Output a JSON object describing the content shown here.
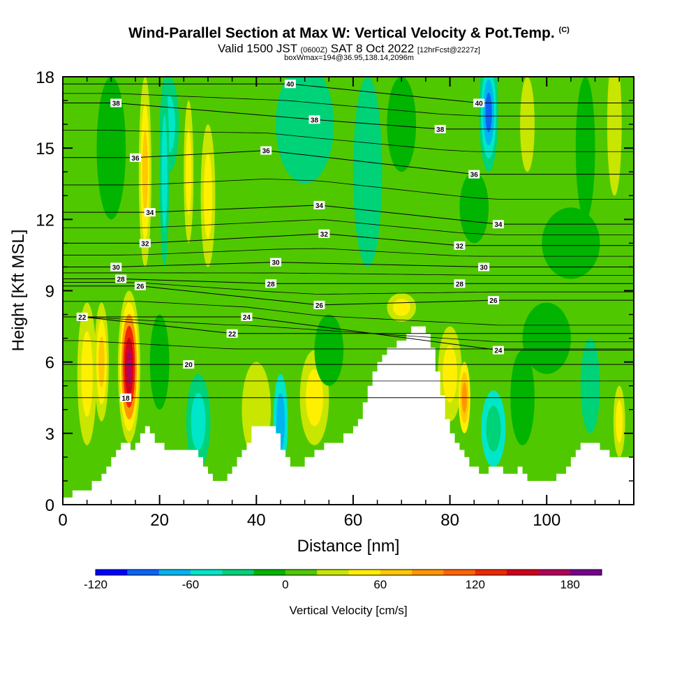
{
  "header": {
    "title_main": "Wind-Parallel Section at Max W: Vertical Velocity & Pot.Temp.",
    "title_mark": "(C)",
    "valid_prefix": "Valid 1500 JST",
    "valid_utc": "(0600Z)",
    "valid_date": "SAT 8 Oct 2022",
    "forecast": "[12hrFcst@2227z]",
    "box_info": "boxWmax=194@36.95,138.14,2096m"
  },
  "chart_data": {
    "type": "heatmap",
    "xlabel": "Distance [nm]",
    "ylabel": "Height [Kft MSL]",
    "xlim": [
      0,
      118
    ],
    "ylim": [
      0,
      18
    ],
    "x_ticks": [
      0,
      20,
      40,
      60,
      80,
      100
    ],
    "y_ticks": [
      0,
      3,
      6,
      9,
      12,
      15,
      18
    ],
    "colorbar": {
      "label": "Vertical Velocity [cm/s]",
      "ticks": [
        -120,
        -60,
        0,
        60,
        120,
        180
      ],
      "range": [
        -120,
        200
      ],
      "step": 20,
      "colors": [
        "#0000ff",
        "#0a64f5",
        "#00b4f0",
        "#00e6c8",
        "#00d278",
        "#00b400",
        "#50c800",
        "#c8e600",
        "#ffef00",
        "#ffc800",
        "#ff9600",
        "#ff6400",
        "#f02800",
        "#d2001e",
        "#b4005a",
        "#78008c"
      ]
    },
    "terrain_height_kft": {
      "x": [
        0,
        2,
        4,
        6,
        8,
        9,
        10,
        11,
        12,
        13,
        14,
        15,
        16,
        17,
        18,
        19,
        20,
        21,
        22,
        24,
        26,
        28,
        29,
        30,
        31,
        32,
        33,
        34,
        35,
        36,
        37,
        38,
        39,
        40,
        42,
        44,
        45,
        46,
        47,
        48,
        50,
        52,
        54,
        56,
        58,
        60,
        61,
        62,
        63,
        64,
        65,
        66,
        67,
        68,
        69,
        70,
        71,
        72,
        73,
        74,
        75,
        76,
        77,
        78,
        79,
        80,
        81,
        82,
        83,
        84,
        85,
        86,
        87,
        88,
        89,
        90,
        91,
        92,
        93,
        94,
        95,
        96,
        97,
        98,
        99,
        100,
        101,
        102,
        103,
        104,
        105,
        106,
        107,
        108,
        109,
        110,
        111,
        112,
        113,
        114,
        116,
        118
      ],
      "y": [
        0.3,
        0.6,
        0.6,
        1.0,
        1.3,
        1.6,
        2.0,
        2.3,
        2.6,
        2.6,
        2.3,
        2.6,
        3.0,
        3.3,
        3.0,
        2.6,
        2.6,
        2.3,
        2.3,
        2.3,
        2.3,
        2.0,
        1.6,
        1.3,
        1.0,
        1.0,
        1.0,
        1.3,
        1.6,
        2.0,
        2.3,
        2.6,
        3.3,
        3.3,
        3.3,
        3.0,
        2.3,
        2.0,
        1.6,
        1.6,
        2.0,
        2.3,
        2.6,
        2.6,
        3.0,
        3.3,
        3.6,
        4.3,
        5.0,
        5.6,
        6.0,
        6.3,
        6.6,
        6.6,
        6.9,
        6.9,
        7.2,
        7.5,
        7.5,
        7.5,
        7.2,
        6.6,
        5.6,
        4.6,
        3.6,
        3.0,
        2.6,
        2.3,
        2.0,
        1.6,
        1.6,
        1.3,
        1.3,
        1.6,
        1.6,
        1.6,
        1.3,
        1.3,
        1.3,
        1.6,
        1.3,
        1.0,
        1.0,
        1.0,
        1.0,
        1.0,
        1.0,
        1.3,
        1.3,
        1.6,
        2.0,
        2.3,
        2.6,
        2.6,
        2.6,
        2.6,
        2.3,
        2.3,
        2.0,
        2.0,
        2.0,
        2.0
      ]
    },
    "potential_temperature_labels": [
      {
        "value": "18",
        "x": 13,
        "y": 4.5
      },
      {
        "value": "20",
        "x": 26,
        "y": 5.9
      },
      {
        "value": "22",
        "x": 4,
        "y": 7.9
      },
      {
        "value": "22",
        "x": 35,
        "y": 7.2
      },
      {
        "value": "24",
        "x": 38,
        "y": 7.9
      },
      {
        "value": "24",
        "x": 90,
        "y": 6.5
      },
      {
        "value": "26",
        "x": 16,
        "y": 9.2
      },
      {
        "value": "26",
        "x": 53,
        "y": 8.4
      },
      {
        "value": "26",
        "x": 89,
        "y": 8.6
      },
      {
        "value": "28",
        "x": 12,
        "y": 9.5
      },
      {
        "value": "28",
        "x": 43,
        "y": 9.3
      },
      {
        "value": "28",
        "x": 82,
        "y": 9.3
      },
      {
        "value": "30",
        "x": 11,
        "y": 10.0
      },
      {
        "value": "30",
        "x": 44,
        "y": 10.2
      },
      {
        "value": "30",
        "x": 87,
        "y": 10.0
      },
      {
        "value": "32",
        "x": 17,
        "y": 11.0
      },
      {
        "value": "32",
        "x": 54,
        "y": 11.4
      },
      {
        "value": "32",
        "x": 82,
        "y": 10.9
      },
      {
        "value": "34",
        "x": 18,
        "y": 12.3
      },
      {
        "value": "34",
        "x": 53,
        "y": 12.6
      },
      {
        "value": "34",
        "x": 90,
        "y": 11.8
      },
      {
        "value": "36",
        "x": 15,
        "y": 14.6
      },
      {
        "value": "36",
        "x": 42,
        "y": 14.9
      },
      {
        "value": "36",
        "x": 85,
        "y": 13.9
      },
      {
        "value": "38",
        "x": 11,
        "y": 16.9
      },
      {
        "value": "38",
        "x": 52,
        "y": 16.2
      },
      {
        "value": "38",
        "x": 78,
        "y": 15.8
      },
      {
        "value": "40",
        "x": 47,
        "y": 17.7
      },
      {
        "value": "40",
        "x": 86,
        "y": 16.9
      }
    ]
  }
}
